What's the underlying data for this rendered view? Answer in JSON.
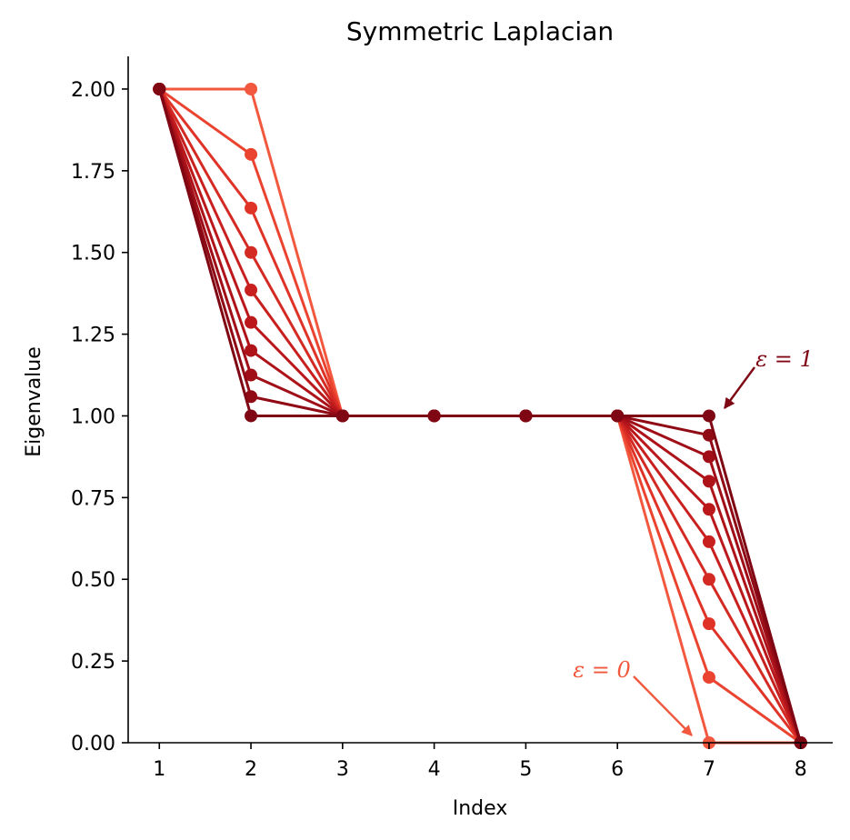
{
  "chart_data": {
    "type": "line",
    "title": "Symmetric Laplacian",
    "xlabel": "Index",
    "ylabel": "Eigenvalue",
    "x": [
      1,
      2,
      3,
      4,
      5,
      6,
      7,
      8
    ],
    "xticks": [
      "1",
      "2",
      "3",
      "4",
      "5",
      "6",
      "7",
      "8"
    ],
    "xlim": [
      0.66,
      8.35
    ],
    "yticks": [
      "0.00",
      "0.25",
      "0.50",
      "0.75",
      "1.00",
      "1.25",
      "1.50",
      "1.75",
      "2.00"
    ],
    "ylim": [
      0,
      2.1
    ],
    "grid": false,
    "legend": "none",
    "series": [
      {
        "color": "#f2583e",
        "values": [
          2.0,
          2.0,
          1.0,
          1.0,
          1.0,
          1.0,
          0.0,
          0.0
        ]
      },
      {
        "color": "#ea4430",
        "values": [
          2.0,
          1.8,
          1.0,
          1.0,
          1.0,
          1.0,
          0.2,
          0.0
        ]
      },
      {
        "color": "#e03327",
        "values": [
          2.0,
          1.636,
          1.0,
          1.0,
          1.0,
          1.0,
          0.364,
          0.0
        ]
      },
      {
        "color": "#d42a24",
        "values": [
          2.0,
          1.5,
          1.0,
          1.0,
          1.0,
          1.0,
          0.5,
          0.0
        ]
      },
      {
        "color": "#c8201f",
        "values": [
          2.0,
          1.385,
          1.0,
          1.0,
          1.0,
          1.0,
          0.615,
          0.0
        ]
      },
      {
        "color": "#bb181c",
        "values": [
          2.0,
          1.286,
          1.0,
          1.0,
          1.0,
          1.0,
          0.714,
          0.0
        ]
      },
      {
        "color": "#ae131a",
        "values": [
          2.0,
          1.2,
          1.0,
          1.0,
          1.0,
          1.0,
          0.8,
          0.0
        ]
      },
      {
        "color": "#a00f18",
        "values": [
          2.0,
          1.125,
          1.0,
          1.0,
          1.0,
          1.0,
          0.875,
          0.0
        ]
      },
      {
        "color": "#900a16",
        "values": [
          2.0,
          1.059,
          1.0,
          1.0,
          1.0,
          1.0,
          0.941,
          0.0
        ]
      },
      {
        "color": "#7f0613",
        "values": [
          2.0,
          1.0,
          1.0,
          1.0,
          1.0,
          1.0,
          1.0,
          0.0
        ]
      }
    ],
    "annotations": [
      {
        "text": "ε = 1",
        "color": "#7f0613"
      },
      {
        "text": "ε = 0",
        "color": "#f2583e"
      }
    ]
  }
}
